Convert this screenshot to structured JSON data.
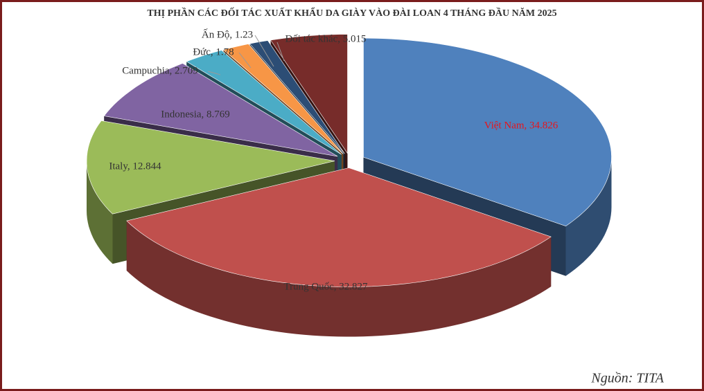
{
  "chart_data": {
    "type": "pie3d",
    "title": "THỊ PHẦN CÁC ĐỐI TÁC XUẤT KHẨU DA GIÀY VÀO ĐÀI LOAN 4 THÁNG ĐẦU NĂM 2025",
    "values": [
      34.826,
      32.827,
      12.844,
      8.769,
      2.709,
      1.78,
      1.23,
      5.015
    ],
    "value_labels": [
      "Việt Nam, 34.826",
      "Trung Quốc, 32.827",
      "Italy, 12.844",
      "Indonesia, 8.769",
      "Campuchia, 2.709",
      "Đức, 1.78",
      "Ấn Độ, 1.23",
      "Đối tác khác, 5.015"
    ],
    "colors": [
      "#4f81bd",
      "#c0504d",
      "#9bbb59",
      "#8064a2",
      "#4bacc6",
      "#f79646",
      "#2c4d75",
      "#772c2a"
    ],
    "label_colors": [
      "#e8141b",
      "#333333",
      "#333333",
      "#333333",
      "#333333",
      "#333333",
      "#333333",
      "#333333"
    ],
    "source": "Nguồn: TITA"
  }
}
